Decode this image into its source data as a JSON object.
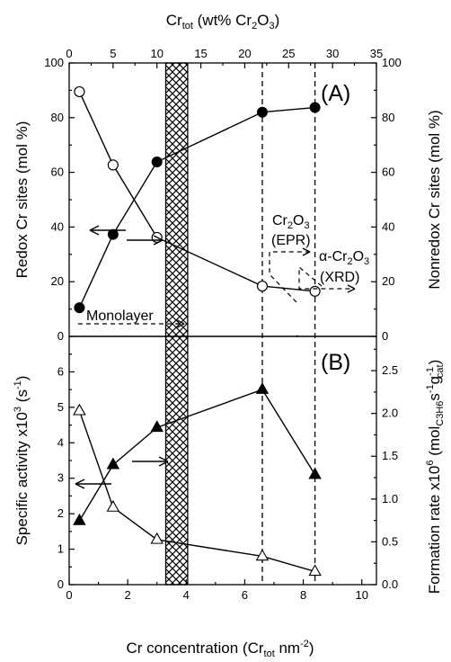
{
  "chart_data": [
    {
      "panel": "(A)",
      "type": "line",
      "top_axis": {
        "label": "Cr",
        "label_sub": "tot",
        "label_rest": " (wt% Cr",
        "label_sub2": "2",
        "label_rest2": "O",
        "label_sub3": "3",
        "label_end": ")",
        "ticks": [
          "0",
          "5",
          "10",
          "15",
          "20",
          "25",
          "30",
          "35"
        ],
        "range": [
          0,
          35
        ]
      },
      "ylabel_left": "Redox Cr sites (mol %)",
      "ylabel_right": "Nonredox Cr sites (mol %)",
      "ylim": [
        0,
        100
      ],
      "yticks": [
        "0",
        "20",
        "40",
        "60",
        "80",
        "100"
      ],
      "series": [
        {
          "axis": "left",
          "marker": "filled-circle",
          "x": [
            0.35,
            1.5,
            3.0,
            6.6,
            8.4
          ],
          "y": [
            10.5,
            37.3,
            63.8,
            82.0,
            83.7
          ]
        },
        {
          "axis": "right",
          "marker": "open-circle",
          "x": [
            0.35,
            1.5,
            3.0,
            6.6,
            8.4
          ],
          "y": [
            89.5,
            62.7,
            36.2,
            18.4,
            16.5
          ]
        }
      ],
      "annotations": {
        "panel_label": "(A)",
        "monolayer": "Monolayer",
        "cr2o3": "Cr",
        "cr2o3_sub1": "2",
        "cr2o3_mid": "O",
        "cr2o3_sub2": "3",
        "epr": "(EPR)",
        "alpha": "α-Cr",
        "alpha_sub1": "2",
        "alpha_mid": "O",
        "alpha_sub2": "3",
        "xrd": "(XRD)"
      }
    },
    {
      "panel": "(B)",
      "type": "line",
      "xlabel": "Cr concentration (Cr",
      "xlabel_sub": "tot",
      "xlabel_rest": " nm",
      "xlabel_sup": "-2",
      "xlabel_end": ")",
      "xlim": [
        0,
        10.5
      ],
      "xticks": [
        "0",
        "2",
        "4",
        "6",
        "8",
        "10"
      ],
      "ylabel_left": "Specific activity x10",
      "ylabel_left_sup": "3",
      "ylabel_left_rest": " (s",
      "ylabel_left_sup2": "-1",
      "ylabel_left_end": ")",
      "ylabel_right": "Formation rate x10",
      "ylabel_right_sup": "6",
      "ylabel_right_rest": " (mol",
      "ylabel_right_sub": "C3H6",
      "ylabel_right_rest2": "s",
      "ylabel_right_sup2": "-1",
      "ylabel_right_rest3": "g",
      "ylabel_right_sup3": "-1",
      "ylabel_right_sub2": "cat",
      "ylabel_right_end": ")",
      "ylim_left": [
        0,
        7
      ],
      "yticks_left": [
        "0",
        "1",
        "2",
        "3",
        "4",
        "5",
        "6"
      ],
      "ylim_right": [
        0,
        2.9
      ],
      "yticks_right": [
        "0.0",
        "0.5",
        "1.0",
        "1.5",
        "2.0",
        "2.5"
      ],
      "series": [
        {
          "axis": "left",
          "marker": "filled-triangle",
          "x": [
            0.35,
            1.5,
            3.0,
            6.6,
            8.4
          ],
          "y": [
            1.8,
            3.38,
            4.43,
            5.5,
            3.1
          ]
        },
        {
          "axis": "left",
          "marker": "open-triangle",
          "x": [
            0.35,
            1.5,
            3.0,
            6.6,
            8.4
          ],
          "y": [
            4.9,
            2.18,
            1.27,
            0.8,
            0.37
          ]
        }
      ],
      "annotations": {
        "panel_label": "(B)"
      }
    }
  ],
  "monolayer_band": {
    "x_from": 3.3,
    "x_to": 4.05
  },
  "dashed_verticals_x": [
    6.6,
    8.4
  ]
}
